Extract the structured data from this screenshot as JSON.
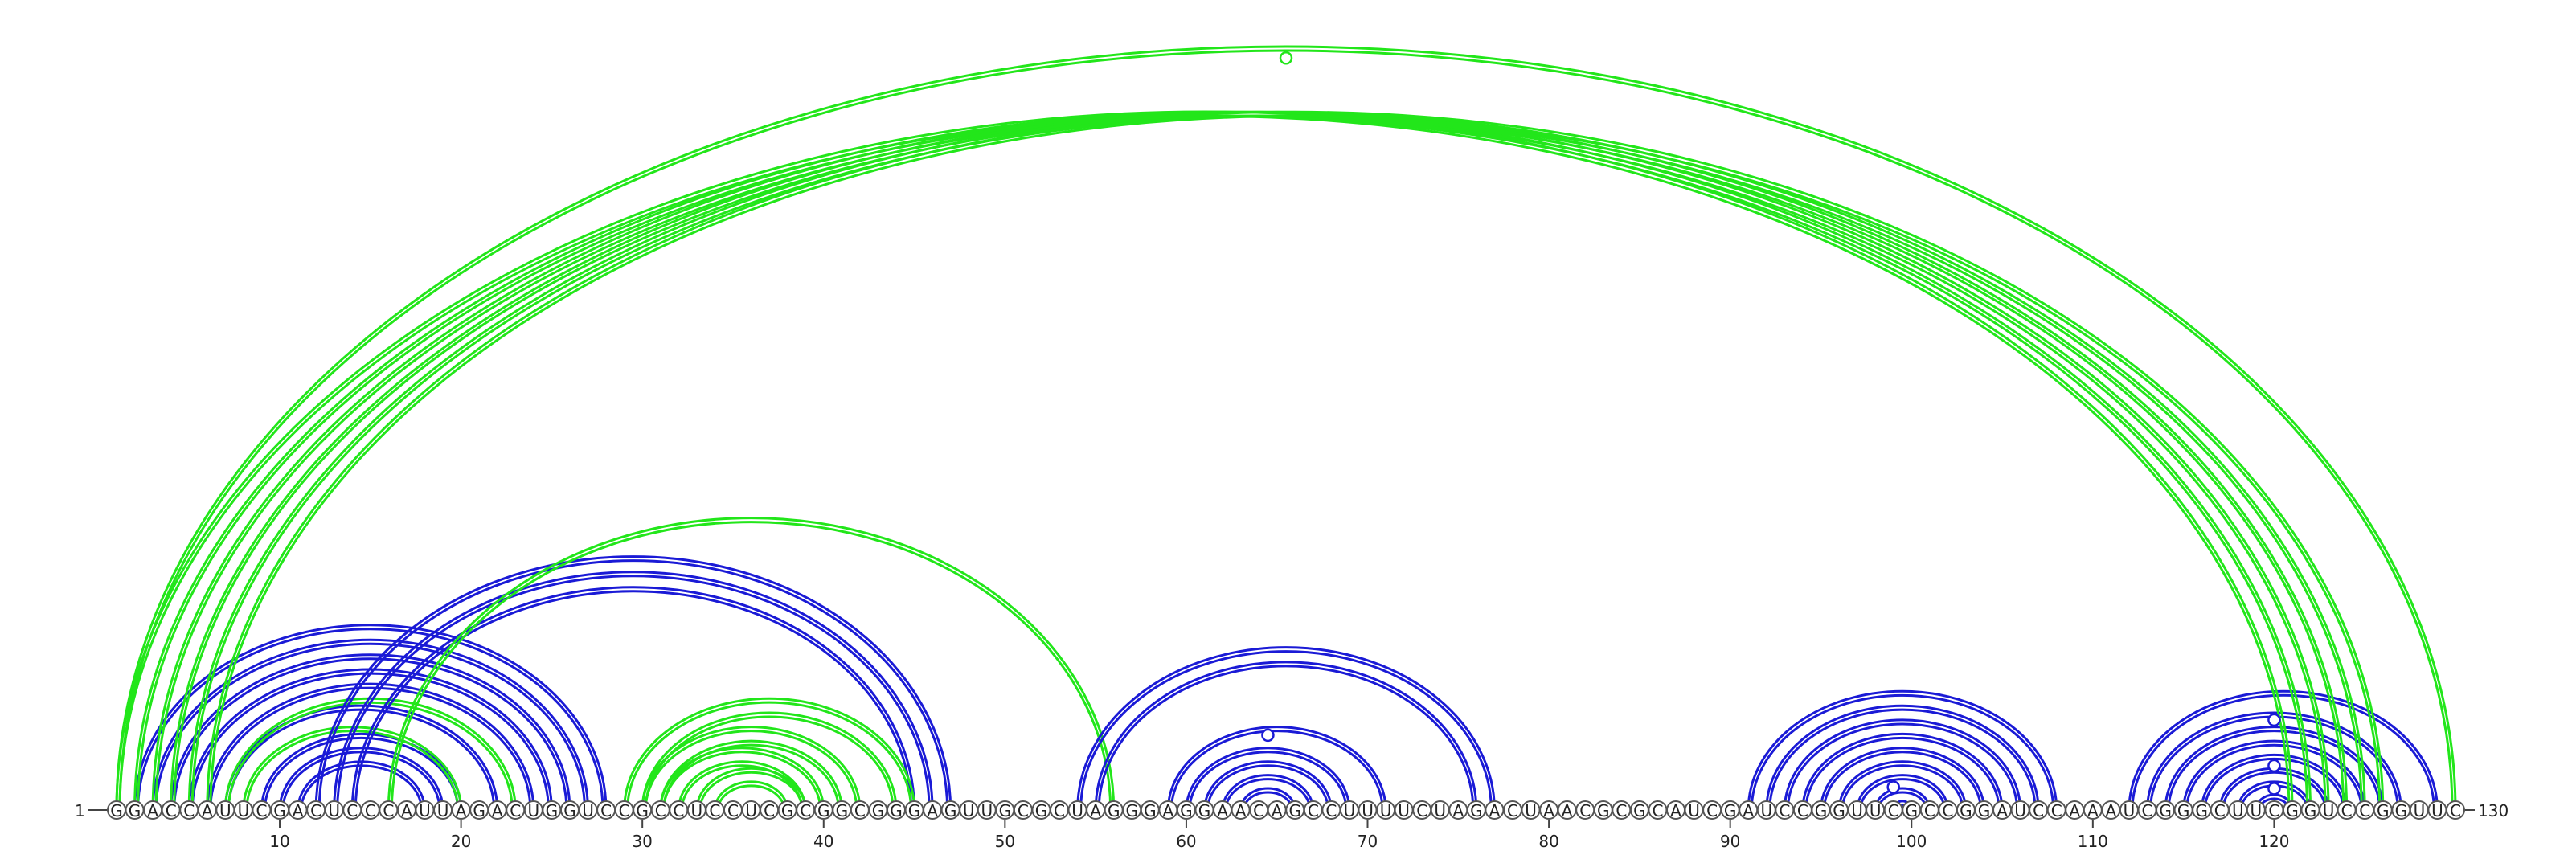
{
  "diagram": {
    "type": "rna-arc-diagram",
    "sequence": "GGACCAUUCGACUCCCAUUAGACUGGUCCGCCUCCUCGCGGCGGGAGUUGCGCUAGGGAGGAACAGCCUUUUCUAGACUAACGCGCAUCGAUCCGGUUCGCCGGAUCCAAAUCGGGCUUCGGUCCGGUUC",
    "start_label": "1",
    "end_label": "130",
    "tick_positions": [
      10,
      20,
      30,
      40,
      50,
      60,
      70,
      80,
      90,
      100,
      110,
      120
    ],
    "colors": {
      "blue": "#1a1ad6",
      "green": "#22e61a",
      "base_stroke": "#555555",
      "text": "#222222"
    },
    "arcs": [
      {
        "i": 2,
        "j": 28,
        "color": "blue"
      },
      {
        "i": 3,
        "j": 27,
        "color": "blue"
      },
      {
        "i": 4,
        "j": 26,
        "color": "blue"
      },
      {
        "i": 5,
        "j": 25,
        "color": "blue"
      },
      {
        "i": 6,
        "j": 24,
        "color": "blue"
      },
      {
        "i": 7,
        "j": 22,
        "color": "blue"
      },
      {
        "i": 9,
        "j": 20,
        "color": "blue"
      },
      {
        "i": 10,
        "j": 19,
        "color": "blue"
      },
      {
        "i": 11,
        "j": 18,
        "color": "blue"
      },
      {
        "i": 7,
        "j": 23,
        "color": "green"
      },
      {
        "i": 8,
        "j": 20,
        "color": "green"
      },
      {
        "i": 12,
        "j": 47,
        "color": "blue"
      },
      {
        "i": 13,
        "j": 46,
        "color": "blue"
      },
      {
        "i": 14,
        "j": 45,
        "color": "blue"
      },
      {
        "i": 16,
        "j": 56,
        "color": "green"
      },
      {
        "i": 29,
        "j": 45,
        "color": "green"
      },
      {
        "i": 30,
        "j": 44,
        "color": "green"
      },
      {
        "i": 30,
        "j": 42,
        "color": "green"
      },
      {
        "i": 31,
        "j": 41,
        "color": "green"
      },
      {
        "i": 31,
        "j": 40,
        "color": "green"
      },
      {
        "i": 32,
        "j": 39,
        "color": "green"
      },
      {
        "i": 33,
        "j": 39,
        "color": "green"
      },
      {
        "i": 34,
        "j": 38,
        "color": "green"
      },
      {
        "i": 54,
        "j": 77,
        "color": "blue"
      },
      {
        "i": 55,
        "j": 76,
        "color": "blue"
      },
      {
        "i": 59,
        "j": 71,
        "color": "blue"
      },
      {
        "i": 60,
        "j": 69,
        "color": "blue"
      },
      {
        "i": 61,
        "j": 68,
        "color": "blue"
      },
      {
        "i": 62,
        "j": 67,
        "color": "blue"
      },
      {
        "i": 63,
        "j": 66,
        "color": "blue"
      },
      {
        "i": 91,
        "j": 108,
        "color": "blue"
      },
      {
        "i": 92,
        "j": 107,
        "color": "blue"
      },
      {
        "i": 93,
        "j": 106,
        "color": "blue"
      },
      {
        "i": 94,
        "j": 105,
        "color": "blue"
      },
      {
        "i": 95,
        "j": 104,
        "color": "blue"
      },
      {
        "i": 96,
        "j": 103,
        "color": "blue"
      },
      {
        "i": 97,
        "j": 102,
        "color": "blue"
      },
      {
        "i": 98,
        "j": 101,
        "color": "blue"
      },
      {
        "i": 99,
        "j": 100,
        "color": "blue"
      },
      {
        "i": 112,
        "j": 129,
        "color": "blue"
      },
      {
        "i": 113,
        "j": 127,
        "color": "blue"
      },
      {
        "i": 114,
        "j": 126,
        "color": "blue"
      },
      {
        "i": 115,
        "j": 125,
        "color": "blue"
      },
      {
        "i": 116,
        "j": 124,
        "color": "blue"
      },
      {
        "i": 117,
        "j": 123,
        "color": "blue"
      },
      {
        "i": 118,
        "j": 122,
        "color": "blue"
      },
      {
        "i": 119,
        "j": 121,
        "color": "blue"
      },
      {
        "i": 1,
        "j": 121,
        "color": "green"
      },
      {
        "i": 2,
        "j": 122,
        "color": "green"
      },
      {
        "i": 3,
        "j": 123,
        "color": "green"
      },
      {
        "i": 4,
        "j": 124,
        "color": "green"
      },
      {
        "i": 5,
        "j": 125,
        "color": "green"
      },
      {
        "i": 6,
        "j": 126,
        "color": "green"
      },
      {
        "i": 1,
        "j": 130,
        "color": "green"
      }
    ],
    "markers": [
      {
        "pos": 65.5,
        "arc_height": 0.985,
        "color": "green"
      },
      {
        "pos": 64.5,
        "arc_height": 0.098,
        "color": "blue"
      },
      {
        "pos": 99,
        "arc_height": 0.03,
        "color": "blue"
      },
      {
        "pos": 120,
        "arc_height": 0.118,
        "color": "blue"
      },
      {
        "pos": 120,
        "arc_height": 0.058,
        "color": "blue"
      },
      {
        "pos": 120,
        "arc_height": 0.028,
        "color": "blue"
      }
    ]
  }
}
